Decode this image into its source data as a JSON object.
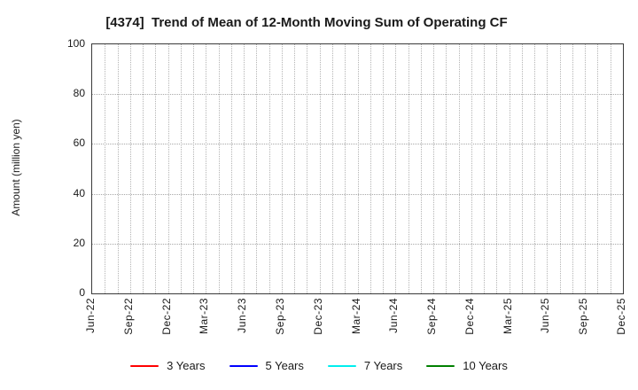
{
  "chart_data": {
    "type": "line",
    "title": "[4374]  Trend of Mean of 12-Month Moving Sum of Operating CF",
    "xlabel": "",
    "ylabel": "Amount (million yen)",
    "ylim": [
      0,
      100
    ],
    "yticks": [
      0,
      20,
      40,
      60,
      80,
      100
    ],
    "x_tick_labels": [
      "Jun-22",
      "Sep-22",
      "Dec-22",
      "Mar-23",
      "Jun-23",
      "Sep-23",
      "Dec-23",
      "Mar-24",
      "Jun-24",
      "Sep-24",
      "Dec-24",
      "Mar-25",
      "Jun-25",
      "Sep-25",
      "Dec-25"
    ],
    "months_between_labeled_ticks": 3,
    "total_month_intervals": 42,
    "grid": true,
    "grid_style": "dotted",
    "grid_color": "#b4b4b4",
    "spine_color": "#3a3a3a",
    "legend_position": "bottom-center",
    "series": [
      {
        "name": "3 Years",
        "color": "#ff0000",
        "values": []
      },
      {
        "name": "5 Years",
        "color": "#0000ff",
        "values": []
      },
      {
        "name": "7 Years",
        "color": "#00eeee",
        "values": []
      },
      {
        "name": "10 Years",
        "color": "#008000",
        "values": []
      }
    ]
  }
}
